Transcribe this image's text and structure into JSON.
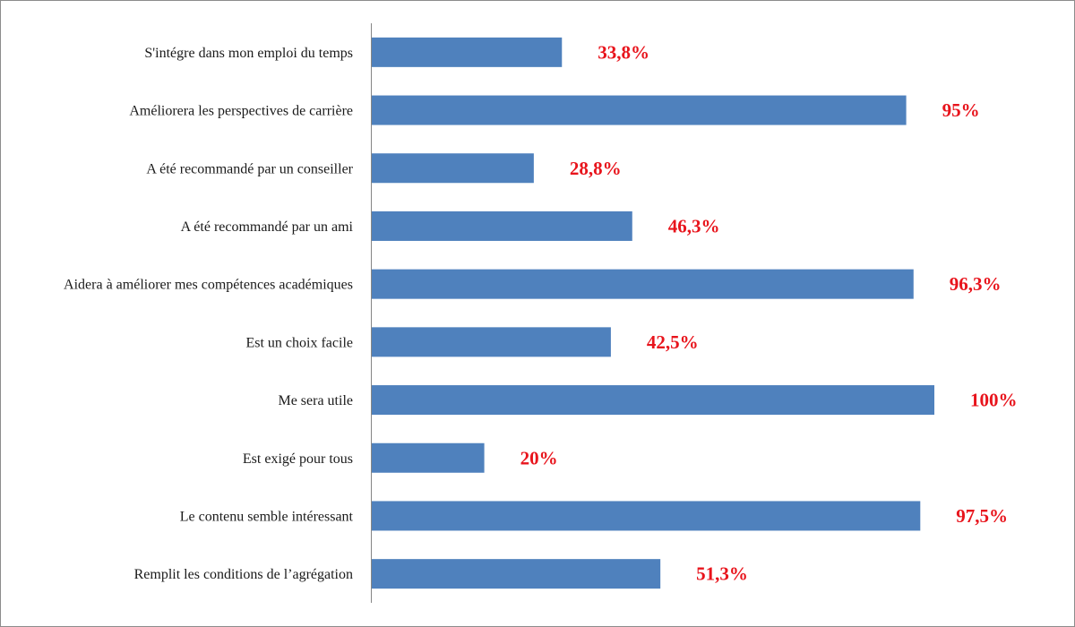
{
  "colors": {
    "bar": "#4f81bd",
    "label": "#e8141c",
    "axis": "#868686",
    "frame": "#8c8c8c"
  },
  "chart_data": {
    "type": "bar",
    "orientation": "horizontal",
    "title": "",
    "xlabel": "",
    "ylabel": "",
    "xlim": [
      0,
      100
    ],
    "grid": false,
    "categories": [
      "S'intégre dans mon emploi du temps",
      "Améliorera les perspectives de carrière",
      "A été recommandé par un conseiller",
      "A été recommandé par un ami",
      "Aidera à améliorer mes compétences académiques",
      "Est un choix facile",
      "Me sera utile",
      "Est exigé pour tous",
      "Le contenu semble intéressant",
      "Remplit les conditions de l’agrégation"
    ],
    "values": [
      33.8,
      95,
      28.8,
      46.3,
      96.3,
      42.5,
      100,
      20,
      97.5,
      51.3
    ],
    "data_labels": [
      "33,8%",
      "95%",
      "28,8%",
      "46,3%",
      "96,3%",
      "42,5%",
      "100%",
      "20%",
      "97,5%",
      "51,3%"
    ]
  }
}
